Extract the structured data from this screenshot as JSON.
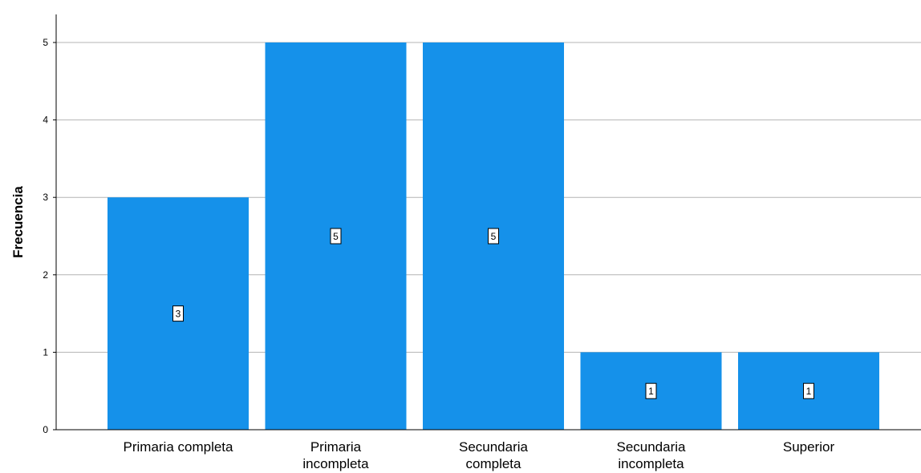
{
  "chart_data": {
    "type": "bar",
    "title": "",
    "xlabel": "",
    "ylabel": "Frecuencia",
    "ylim": [
      0,
      5
    ],
    "yticks": [
      "0",
      "1",
      "2",
      "3",
      "4",
      "5"
    ],
    "grid": true,
    "legend": "none",
    "bar_color": "#1591ea",
    "categories": [
      [
        "Primaria completa"
      ],
      [
        "Primaria",
        "incompleta"
      ],
      [
        "Secundaria",
        "completa"
      ],
      [
        "Secundaria",
        "incompleta"
      ],
      [
        "Superior"
      ]
    ],
    "values": [
      3,
      5,
      5,
      1,
      1
    ],
    "data_labels": [
      "3",
      "5",
      "5",
      "1",
      "1"
    ]
  }
}
